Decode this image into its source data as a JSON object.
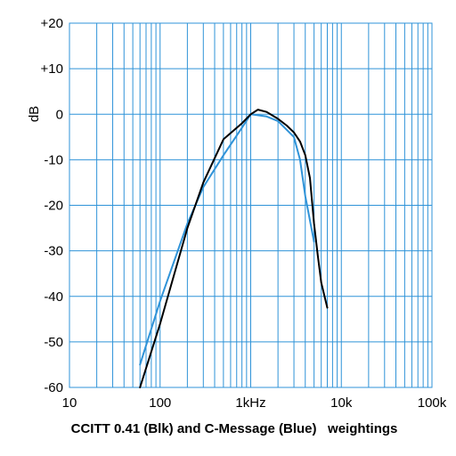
{
  "chart_data": {
    "type": "line",
    "title": "CCITT 0.41 (Blk) and C-Message (Blue)   weightings",
    "xlabel": "",
    "ylabel": "dB",
    "xscale": "log",
    "xlim": [
      10,
      100000
    ],
    "ylim": [
      -60,
      20
    ],
    "grid": true,
    "x_tick_values": [
      10,
      100,
      1000,
      10000,
      100000
    ],
    "x_tick_labels": [
      "10",
      "100",
      "1kHz",
      "10k",
      "100k"
    ],
    "y_tick_values": [
      20,
      10,
      0,
      -10,
      -20,
      -30,
      -40,
      -50,
      -60
    ],
    "y_tick_labels": [
      "+20",
      "+10",
      "0",
      "-10",
      "-20",
      "-30",
      "-40",
      "-50",
      "-60"
    ],
    "series": [
      {
        "color": "#2f93d8",
        "x": [
          60,
          100,
          200,
          300,
          500,
          800,
          1000,
          1500,
          2000,
          3000,
          3500,
          4000,
          5000
        ],
        "y": [
          -55,
          -41,
          -24,
          -16,
          -9,
          -3,
          0,
          -0.5,
          -1.5,
          -5,
          -10,
          -18,
          -28
        ]
      },
      {
        "color": "#000000",
        "x": [
          60,
          100,
          200,
          300,
          500,
          800,
          1000,
          1200,
          1500,
          2000,
          2500,
          3000,
          3500,
          4000,
          4500,
          5000,
          5500,
          6000,
          7000
        ],
        "y": [
          -60,
          -46,
          -25,
          -15,
          -5.5,
          -2,
          0,
          1,
          0.5,
          -1,
          -2.5,
          -4,
          -6,
          -9,
          -14,
          -24,
          -31,
          -37,
          -42.5
        ]
      }
    ]
  }
}
